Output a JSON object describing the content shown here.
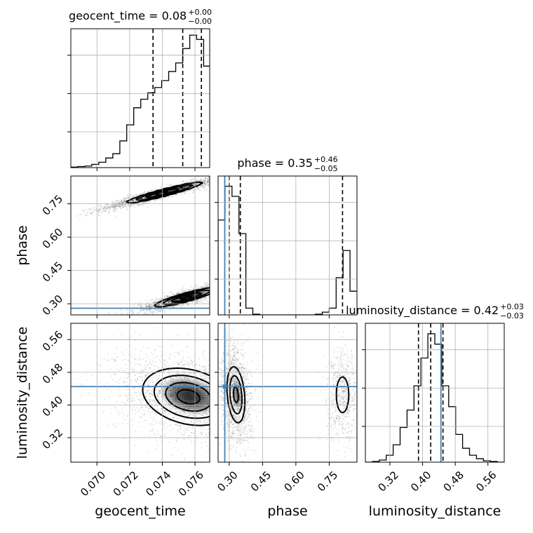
{
  "chart_data": {
    "type": "corner",
    "parameters": [
      "geocent_time",
      "phase",
      "luminosity_distance"
    ],
    "truths": {
      "geocent_time": null,
      "phase": 0.28,
      "luminosity_distance": 0.445
    },
    "truth_color": "#4682b4",
    "axes": {
      "geocent_time": {
        "range": [
          0.0684,
          0.0769
        ],
        "ticks": [
          0.07,
          0.072,
          0.074,
          0.076
        ],
        "tick_labels": [
          "0.070",
          "0.072",
          "0.074",
          "0.076"
        ]
      },
      "phase": {
        "range": [
          0.25,
          0.875
        ],
        "ticks": [
          0.3,
          0.45,
          0.6,
          0.75
        ],
        "tick_labels": [
          "0.30",
          "0.45",
          "0.60",
          "0.75"
        ]
      },
      "luminosity_distance": {
        "range": [
          0.26,
          0.6
        ],
        "ticks": [
          0.32,
          0.4,
          0.48,
          0.56
        ],
        "tick_labels": [
          "0.32",
          "0.40",
          "0.48",
          "0.56"
        ]
      }
    },
    "titles": {
      "geocent_time": {
        "main": "geocent_time = 0.08",
        "sup": "+0.00",
        "sub": "−0.00"
      },
      "phase": {
        "main": "phase = 0.35",
        "sup": "+0.46",
        "sub": "−0.05"
      },
      "luminosity_distance": {
        "main": "luminosity_distance = 0.42",
        "sup": "+0.03",
        "sub": "−0.03"
      }
    },
    "xlabels": {
      "geocent_time": "geocent_time",
      "phase": "phase",
      "luminosity_distance": "luminosity_distance"
    },
    "ylabels": {
      "phase": "phase",
      "luminosity_distance": "luminosity_distance"
    },
    "histograms": {
      "geocent_time": {
        "bin_edges": [
          0.0684,
          0.06883,
          0.06926,
          0.06968,
          0.07011,
          0.07054,
          0.07097,
          0.0714,
          0.07182,
          0.07225,
          0.07268,
          0.07311,
          0.07354,
          0.07396,
          0.07439,
          0.07482,
          0.07525,
          0.07568,
          0.0761,
          0.07653,
          0.07696
        ],
        "counts": [
          1,
          2,
          3,
          6,
          10,
          18,
          26,
          50,
          80,
          112,
          128,
          140,
          150,
          163,
          180,
          196,
          223,
          248,
          240,
          190
        ],
        "ymax": 260,
        "quantiles": [
          0.07343,
          0.07525,
          0.07639
        ]
      },
      "phase": {
        "bin_edges": [
          0.25,
          0.28125,
          0.3125,
          0.34375,
          0.375,
          0.40625,
          0.4375,
          0.46875,
          0.5,
          0.53125,
          0.5625,
          0.59375,
          0.625,
          0.65625,
          0.6875,
          0.71875,
          0.75,
          0.78125,
          0.8125,
          0.84375,
          0.875
        ],
        "counts": [
          140,
          190,
          175,
          120,
          10,
          1,
          0,
          0,
          0,
          0,
          0,
          0,
          0,
          0,
          1,
          4,
          10,
          55,
          95,
          35
        ],
        "ymax": 205,
        "quantiles": [
          0.3,
          0.35,
          0.81
        ]
      },
      "luminosity_distance": {
        "bin_edges": [
          0.26,
          0.277,
          0.294,
          0.311,
          0.328,
          0.345,
          0.362,
          0.379,
          0.396,
          0.413,
          0.43,
          0.447,
          0.464,
          0.481,
          0.498,
          0.515,
          0.532,
          0.549,
          0.566,
          0.583,
          0.6
        ],
        "counts": [
          0,
          1,
          3,
          10,
          25,
          50,
          75,
          110,
          150,
          185,
          170,
          110,
          80,
          40,
          20,
          10,
          5,
          2,
          1,
          0
        ],
        "ymax": 200,
        "quantiles": [
          0.39,
          0.42,
          0.45
        ]
      }
    },
    "contour_levels_sigma": [
      0.5,
      1.0,
      1.5,
      2.0
    ],
    "modes_2d": {
      "geocent_time__phase": [
        {
          "cx": 0.0741,
          "cy": 0.8,
          "ax": "geocent_time",
          "sx": 0.0012,
          "sy": 0.024,
          "rho": 0.95,
          "w": 1.0
        },
        {
          "cx": 0.0755,
          "cy": 0.33,
          "ax": "geocent_time",
          "sx": 0.001,
          "sy": 0.022,
          "rho": 0.9,
          "w": 1.0
        }
      ],
      "geocent_time__luminosity_distance": [
        {
          "cx": 0.0756,
          "cy": 0.42,
          "sx": 0.0014,
          "sy": 0.035,
          "rho": -0.25,
          "w": 1.0
        }
      ],
      "phase__luminosity_distance": [
        {
          "cx": 0.33,
          "cy": 0.425,
          "sx": 0.022,
          "sy": 0.038,
          "rho": -0.25,
          "w": 0.7
        },
        {
          "cx": 0.81,
          "cy": 0.425,
          "sx": 0.022,
          "sy": 0.035,
          "rho": 0.0,
          "w": 0.3
        }
      ]
    }
  }
}
